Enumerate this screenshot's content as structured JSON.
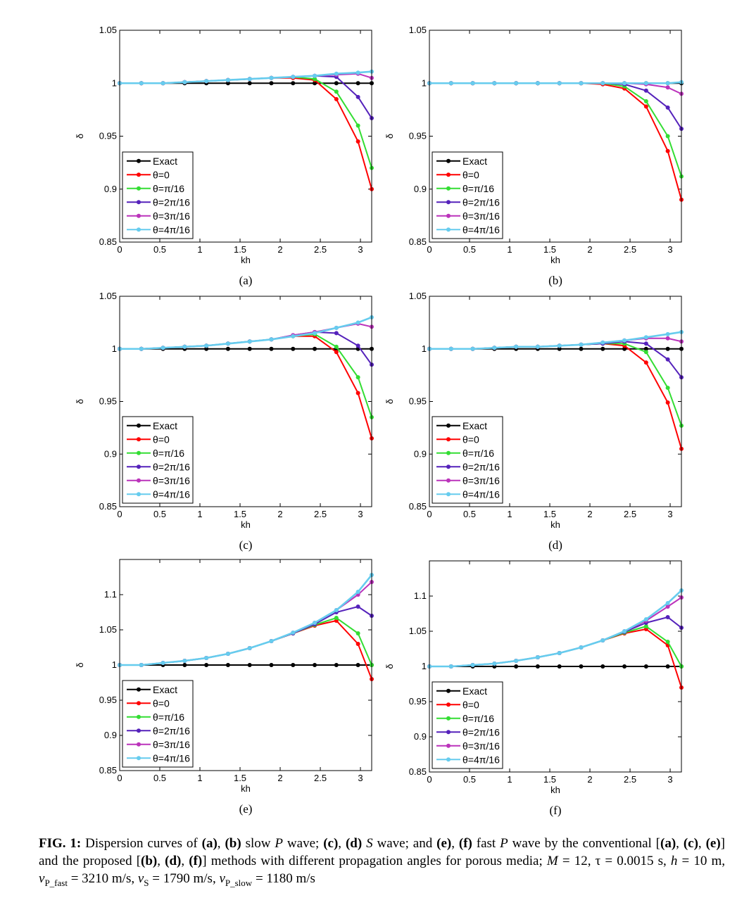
{
  "chart_data": [
    {
      "type": "line",
      "label": "(a)",
      "x_label": "kh",
      "y_label": "δ",
      "legend": "lower left",
      "x": [
        0,
        0.27,
        0.54,
        0.81,
        1.08,
        1.35,
        1.62,
        1.89,
        2.16,
        2.43,
        2.7,
        2.97,
        3.14
      ],
      "xlim": [
        0,
        3.14
      ],
      "xticks": [
        0,
        0.5,
        1,
        1.5,
        2,
        2.5,
        3
      ],
      "ylim": [
        0.85,
        1.05
      ],
      "yticks": [
        0.85,
        0.9,
        0.95,
        1,
        1.05
      ],
      "series": [
        {
          "name": "Exact",
          "color": "#000000",
          "values": [
            1,
            1,
            1,
            1,
            1,
            1,
            1,
            1,
            1,
            1,
            1,
            1,
            1
          ]
        },
        {
          "name": "θ=0",
          "color": "#ff0000",
          "values": [
            1,
            1,
            1,
            1.001,
            1.002,
            1.003,
            1.004,
            1.005,
            1.005,
            1.003,
            0.985,
            0.945,
            0.9
          ]
        },
        {
          "name": "θ=π/16",
          "color": "#33dd33",
          "values": [
            1,
            1,
            1,
            1.001,
            1.002,
            1.003,
            1.004,
            1.005,
            1.006,
            1.004,
            0.992,
            0.96,
            0.92
          ]
        },
        {
          "name": "θ=2π/16",
          "color": "#5522bb",
          "values": [
            1,
            1,
            1,
            1.001,
            1.002,
            1.003,
            1.004,
            1.005,
            1.006,
            1.007,
            1.006,
            0.987,
            0.967
          ]
        },
        {
          "name": "θ=3π/16",
          "color": "#bb33bb",
          "values": [
            1,
            1,
            1,
            1.001,
            1.002,
            1.003,
            1.004,
            1.005,
            1.006,
            1.007,
            1.008,
            1.009,
            1.005
          ]
        },
        {
          "name": "θ=4π/16",
          "color": "#66ccee",
          "values": [
            1,
            1,
            1,
            1.001,
            1.002,
            1.003,
            1.004,
            1.005,
            1.006,
            1.007,
            1.009,
            1.01,
            1.011
          ]
        }
      ]
    },
    {
      "type": "line",
      "label": "(b)",
      "x_label": "kh",
      "y_label": "δ",
      "legend": "lower left",
      "x": [
        0,
        0.27,
        0.54,
        0.81,
        1.08,
        1.35,
        1.62,
        1.89,
        2.16,
        2.43,
        2.7,
        2.97,
        3.14
      ],
      "xlim": [
        0,
        3.14
      ],
      "xticks": [
        0,
        0.5,
        1,
        1.5,
        2,
        2.5,
        3
      ],
      "ylim": [
        0.85,
        1.05
      ],
      "yticks": [
        0.85,
        0.9,
        0.95,
        1,
        1.05
      ],
      "series": [
        {
          "name": "Exact",
          "color": "#000000",
          "values": [
            1,
            1,
            1,
            1,
            1,
            1,
            1,
            1,
            1,
            1,
            1,
            1,
            1
          ]
        },
        {
          "name": "θ=0",
          "color": "#ff0000",
          "values": [
            1,
            1,
            1,
            1,
            1,
            1,
            1,
            1,
            0.999,
            0.995,
            0.978,
            0.936,
            0.89
          ]
        },
        {
          "name": "θ=π/16",
          "color": "#33dd33",
          "values": [
            1,
            1,
            1,
            1,
            1,
            1,
            1,
            1,
            1,
            0.997,
            0.983,
            0.95,
            0.912
          ]
        },
        {
          "name": "θ=2π/16",
          "color": "#5522bb",
          "values": [
            1,
            1,
            1,
            1,
            1,
            1,
            1,
            1,
            1,
            0.999,
            0.993,
            0.977,
            0.957
          ]
        },
        {
          "name": "θ=3π/16",
          "color": "#bb33bb",
          "values": [
            1,
            1,
            1,
            1,
            1,
            1,
            1,
            1,
            1,
            1,
            0.999,
            0.996,
            0.99
          ]
        },
        {
          "name": "θ=4π/16",
          "color": "#66ccee",
          "values": [
            1,
            1,
            1,
            1,
            1,
            1,
            1,
            1,
            1,
            1,
            1,
            1,
            1.001
          ]
        }
      ]
    },
    {
      "type": "line",
      "label": "(c)",
      "x_label": "kh",
      "y_label": "δ",
      "legend": "lower left",
      "x": [
        0,
        0.27,
        0.54,
        0.81,
        1.08,
        1.35,
        1.62,
        1.89,
        2.16,
        2.43,
        2.7,
        2.97,
        3.14
      ],
      "xlim": [
        0,
        3.14
      ],
      "xticks": [
        0,
        0.5,
        1,
        1.5,
        2,
        2.5,
        3
      ],
      "ylim": [
        0.85,
        1.05
      ],
      "yticks": [
        0.85,
        0.9,
        0.95,
        1,
        1.05
      ],
      "series": [
        {
          "name": "Exact",
          "color": "#000000",
          "values": [
            1,
            1,
            1,
            1,
            1,
            1,
            1,
            1,
            1,
            1,
            1,
            1,
            1
          ]
        },
        {
          "name": "θ=0",
          "color": "#ff0000",
          "values": [
            1,
            1,
            1.001,
            1.002,
            1.003,
            1.005,
            1.007,
            1.009,
            1.012,
            1.012,
            0.997,
            0.958,
            0.915
          ]
        },
        {
          "name": "θ=π/16",
          "color": "#33dd33",
          "values": [
            1,
            1,
            1.001,
            1.002,
            1.003,
            1.005,
            1.007,
            1.009,
            1.012,
            1.014,
            1.002,
            0.973,
            0.935
          ]
        },
        {
          "name": "θ=2π/16",
          "color": "#5522bb",
          "values": [
            1,
            1,
            1.001,
            1.002,
            1.003,
            1.005,
            1.007,
            1.009,
            1.013,
            1.016,
            1.015,
            1.003,
            0.985
          ]
        },
        {
          "name": "θ=3π/16",
          "color": "#bb33bb",
          "values": [
            1,
            1,
            1.001,
            1.002,
            1.003,
            1.005,
            1.007,
            1.009,
            1.013,
            1.016,
            1.02,
            1.024,
            1.021
          ]
        },
        {
          "name": "θ=4π/16",
          "color": "#66ccee",
          "values": [
            1,
            1,
            1.001,
            1.002,
            1.003,
            1.005,
            1.007,
            1.009,
            1.012,
            1.015,
            1.02,
            1.025,
            1.03
          ]
        }
      ]
    },
    {
      "type": "line",
      "label": "(d)",
      "x_label": "kh",
      "y_label": "δ",
      "legend": "lower left",
      "x": [
        0,
        0.27,
        0.54,
        0.81,
        1.08,
        1.35,
        1.62,
        1.89,
        2.16,
        2.43,
        2.7,
        2.97,
        3.14
      ],
      "xlim": [
        0,
        3.14
      ],
      "xticks": [
        0,
        0.5,
        1,
        1.5,
        2,
        2.5,
        3
      ],
      "ylim": [
        0.85,
        1.05
      ],
      "yticks": [
        0.85,
        0.9,
        0.95,
        1,
        1.05
      ],
      "series": [
        {
          "name": "Exact",
          "color": "#000000",
          "values": [
            1,
            1,
            1,
            1,
            1,
            1,
            1,
            1,
            1,
            1,
            1,
            1,
            1
          ]
        },
        {
          "name": "θ=0",
          "color": "#ff0000",
          "values": [
            1,
            1,
            1,
            1.001,
            1.002,
            1.002,
            1.003,
            1.004,
            1.005,
            1.003,
            0.987,
            0.949,
            0.905
          ]
        },
        {
          "name": "θ=π/16",
          "color": "#33dd33",
          "values": [
            1,
            1,
            1,
            1.001,
            1.002,
            1.002,
            1.003,
            1.004,
            1.005,
            1.005,
            0.997,
            0.963,
            0.927
          ]
        },
        {
          "name": "θ=2π/16",
          "color": "#5522bb",
          "values": [
            1,
            1,
            1,
            1.001,
            1.002,
            1.002,
            1.003,
            1.004,
            1.005,
            1.007,
            1.005,
            0.99,
            0.973
          ]
        },
        {
          "name": "θ=3π/16",
          "color": "#bb33bb",
          "values": [
            1,
            1,
            1,
            1.001,
            1.002,
            1.002,
            1.003,
            1.004,
            1.006,
            1.008,
            1.01,
            1.01,
            1.007
          ]
        },
        {
          "name": "θ=4π/16",
          "color": "#66ccee",
          "values": [
            1,
            1,
            1,
            1.001,
            1.002,
            1.002,
            1.003,
            1.004,
            1.006,
            1.008,
            1.011,
            1.014,
            1.016
          ]
        }
      ]
    },
    {
      "type": "line",
      "label": "(e)",
      "x_label": "kh",
      "y_label": "δ",
      "legend": "lower left",
      "x": [
        0,
        0.27,
        0.54,
        0.81,
        1.08,
        1.35,
        1.62,
        1.89,
        2.16,
        2.43,
        2.7,
        2.97,
        3.14
      ],
      "xlim": [
        0,
        3.14
      ],
      "xticks": [
        0,
        0.5,
        1,
        1.5,
        2,
        2.5,
        3
      ],
      "ylim": [
        0.85,
        1.15
      ],
      "yticks": [
        0.85,
        0.9,
        0.95,
        1,
        1.05,
        1.1
      ],
      "series": [
        {
          "name": "Exact",
          "color": "#000000",
          "values": [
            1,
            1,
            1,
            1,
            1,
            1,
            1,
            1,
            1,
            1,
            1,
            1,
            1
          ]
        },
        {
          "name": "θ=0",
          "color": "#ff0000",
          "values": [
            1,
            1,
            1.003,
            1.006,
            1.01,
            1.016,
            1.024,
            1.034,
            1.045,
            1.056,
            1.063,
            1.03,
            0.98
          ]
        },
        {
          "name": "θ=π/16",
          "color": "#33dd33",
          "values": [
            1,
            1,
            1.003,
            1.006,
            1.01,
            1.016,
            1.024,
            1.034,
            1.045,
            1.057,
            1.067,
            1.045,
            1.0
          ]
        },
        {
          "name": "θ=2π/16",
          "color": "#5522bb",
          "values": [
            1,
            1,
            1.003,
            1.006,
            1.01,
            1.016,
            1.024,
            1.034,
            1.045,
            1.058,
            1.075,
            1.083,
            1.07
          ]
        },
        {
          "name": "θ=3π/16",
          "color": "#bb33bb",
          "values": [
            1,
            1,
            1.003,
            1.006,
            1.01,
            1.016,
            1.024,
            1.034,
            1.046,
            1.06,
            1.078,
            1.1,
            1.118
          ]
        },
        {
          "name": "θ=4π/16",
          "color": "#66ccee",
          "values": [
            1,
            1,
            1.003,
            1.006,
            1.01,
            1.016,
            1.024,
            1.034,
            1.046,
            1.06,
            1.078,
            1.104,
            1.128
          ]
        }
      ]
    },
    {
      "type": "line",
      "label": "(f)",
      "x_label": "kh",
      "y_label": "δ",
      "legend": "lower left",
      "x": [
        0,
        0.27,
        0.54,
        0.81,
        1.08,
        1.35,
        1.62,
        1.89,
        2.16,
        2.43,
        2.7,
        2.97,
        3.14
      ],
      "xlim": [
        0,
        3.14
      ],
      "xticks": [
        0,
        0.5,
        1,
        1.5,
        2,
        2.5,
        3
      ],
      "ylim": [
        0.85,
        1.15
      ],
      "yticks": [
        0.85,
        0.9,
        0.95,
        1,
        1.05,
        1.1
      ],
      "series": [
        {
          "name": "Exact",
          "color": "#000000",
          "values": [
            1,
            1,
            1,
            1,
            1,
            1,
            1,
            1,
            1,
            1,
            1,
            1,
            1
          ]
        },
        {
          "name": "θ=0",
          "color": "#ff0000",
          "values": [
            1,
            1,
            1.002,
            1.004,
            1.008,
            1.013,
            1.019,
            1.027,
            1.037,
            1.047,
            1.053,
            1.03,
            0.97
          ]
        },
        {
          "name": "θ=π/16",
          "color": "#33dd33",
          "values": [
            1,
            1,
            1.002,
            1.004,
            1.008,
            1.013,
            1.019,
            1.027,
            1.037,
            1.048,
            1.057,
            1.035,
            1.0
          ]
        },
        {
          "name": "θ=2π/16",
          "color": "#5522bb",
          "values": [
            1,
            1,
            1.002,
            1.004,
            1.008,
            1.013,
            1.019,
            1.027,
            1.037,
            1.049,
            1.062,
            1.07,
            1.055
          ]
        },
        {
          "name": "θ=3π/16",
          "color": "#bb33bb",
          "values": [
            1,
            1,
            1.002,
            1.004,
            1.008,
            1.013,
            1.019,
            1.027,
            1.037,
            1.05,
            1.065,
            1.085,
            1.098
          ]
        },
        {
          "name": "θ=4π/16",
          "color": "#66ccee",
          "values": [
            1,
            1,
            1.002,
            1.004,
            1.008,
            1.013,
            1.019,
            1.027,
            1.037,
            1.05,
            1.067,
            1.09,
            1.108
          ]
        }
      ]
    }
  ],
  "caption": [
    {
      "text": "FIG. 1:",
      "style": "b"
    },
    {
      "text": " Dispersion curves of "
    },
    {
      "text": "(a)",
      "style": "b"
    },
    {
      "text": ", "
    },
    {
      "text": "(b)",
      "style": "b"
    },
    {
      "text": " slow "
    },
    {
      "text": "P",
      "style": "i"
    },
    {
      "text": " wave; "
    },
    {
      "text": "(c)",
      "style": "b"
    },
    {
      "text": ", "
    },
    {
      "text": "(d)",
      "style": "b"
    },
    {
      "text": " "
    },
    {
      "text": "S",
      "style": "i"
    },
    {
      "text": " wave; and "
    },
    {
      "text": "(e)",
      "style": "b"
    },
    {
      "text": ", "
    },
    {
      "text": "(f)",
      "style": "b"
    },
    {
      "text": " fast "
    },
    {
      "text": "P",
      "style": "i"
    },
    {
      "text": " wave by the conventional ["
    },
    {
      "text": "(a)",
      "style": "b"
    },
    {
      "text": ", "
    },
    {
      "text": "(c)",
      "style": "b"
    },
    {
      "text": ", "
    },
    {
      "text": "(e)",
      "style": "b"
    },
    {
      "text": "] and the proposed ["
    },
    {
      "text": "(b)",
      "style": "b"
    },
    {
      "text": ", "
    },
    {
      "text": "(d)",
      "style": "b"
    },
    {
      "text": ", "
    },
    {
      "text": "(f)",
      "style": "b"
    },
    {
      "text": "] methods with different propagation angles for porous media; "
    },
    {
      "text": "M",
      "style": "i"
    },
    {
      "text": " = 12, τ = 0.0015 s, "
    },
    {
      "text": "h",
      "style": "i"
    },
    {
      "text": " = 10 m, "
    },
    {
      "text": "v",
      "style": "i"
    },
    {
      "text": "P_fast",
      "style": "sub"
    },
    {
      "text": " = 3210 m/s, "
    },
    {
      "text": "v",
      "style": "i"
    },
    {
      "text": "S",
      "style": "sub"
    },
    {
      "text": " = 1790 m/s, "
    },
    {
      "text": "v",
      "style": "i"
    },
    {
      "text": "P_slow",
      "style": "sub"
    },
    {
      "text": " = 1180 m/s"
    }
  ]
}
